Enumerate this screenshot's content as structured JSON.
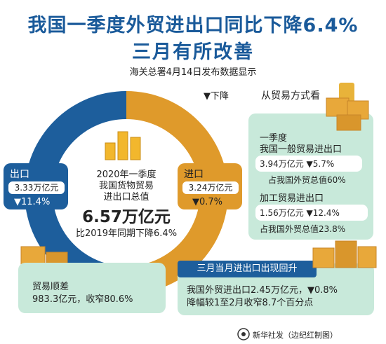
{
  "title_line1": "我国一季度外贸进出口同比下降6.4%",
  "title_line2": "三月有所改善",
  "subtitle": "海关总署4月14日发布数据显示",
  "legend_down": "▼下降",
  "center": {
    "line1": "2020年一季度",
    "line2": "我国货物贸易",
    "line3": "进出口总值",
    "value": "6.57万亿元",
    "compare": "比2019年同期下降6.4%"
  },
  "export": {
    "label": "出口",
    "value": "3.33万亿元",
    "change": "▼11.4%"
  },
  "import": {
    "label": "进口",
    "value": "3.24万亿元",
    "change": "▼0.7%"
  },
  "trade_mode": {
    "heading": "从贸易方式看",
    "general_title1": "一季度",
    "general_title2": "我国一般贸易进出口",
    "general_value": "3.94万亿元 ▼5.7%",
    "general_share": "占我国外贸总值60%",
    "processing_title": "加工贸易进出口",
    "processing_value": "1.56万亿元 ▼12.4%",
    "processing_share": "占我国外贸总值23.8%"
  },
  "surplus": {
    "label": "贸易顺差",
    "value": "983.3亿元，收窄80.6%"
  },
  "march": {
    "banner": "三月当月进出口出现回升",
    "line1": "我国外贸进出口2.45万亿元，▼0.8%",
    "line2": "降幅较1至2月收窄8.7个百分点"
  },
  "footer": "新华社发（边纪红制图）",
  "colors": {
    "title_blue": "#1a5a9a",
    "ring_blue": "#1d5e9c",
    "ring_orange": "#df9a2b",
    "panel_green": "#c8e9da",
    "box_orange": "#e8a83a"
  }
}
